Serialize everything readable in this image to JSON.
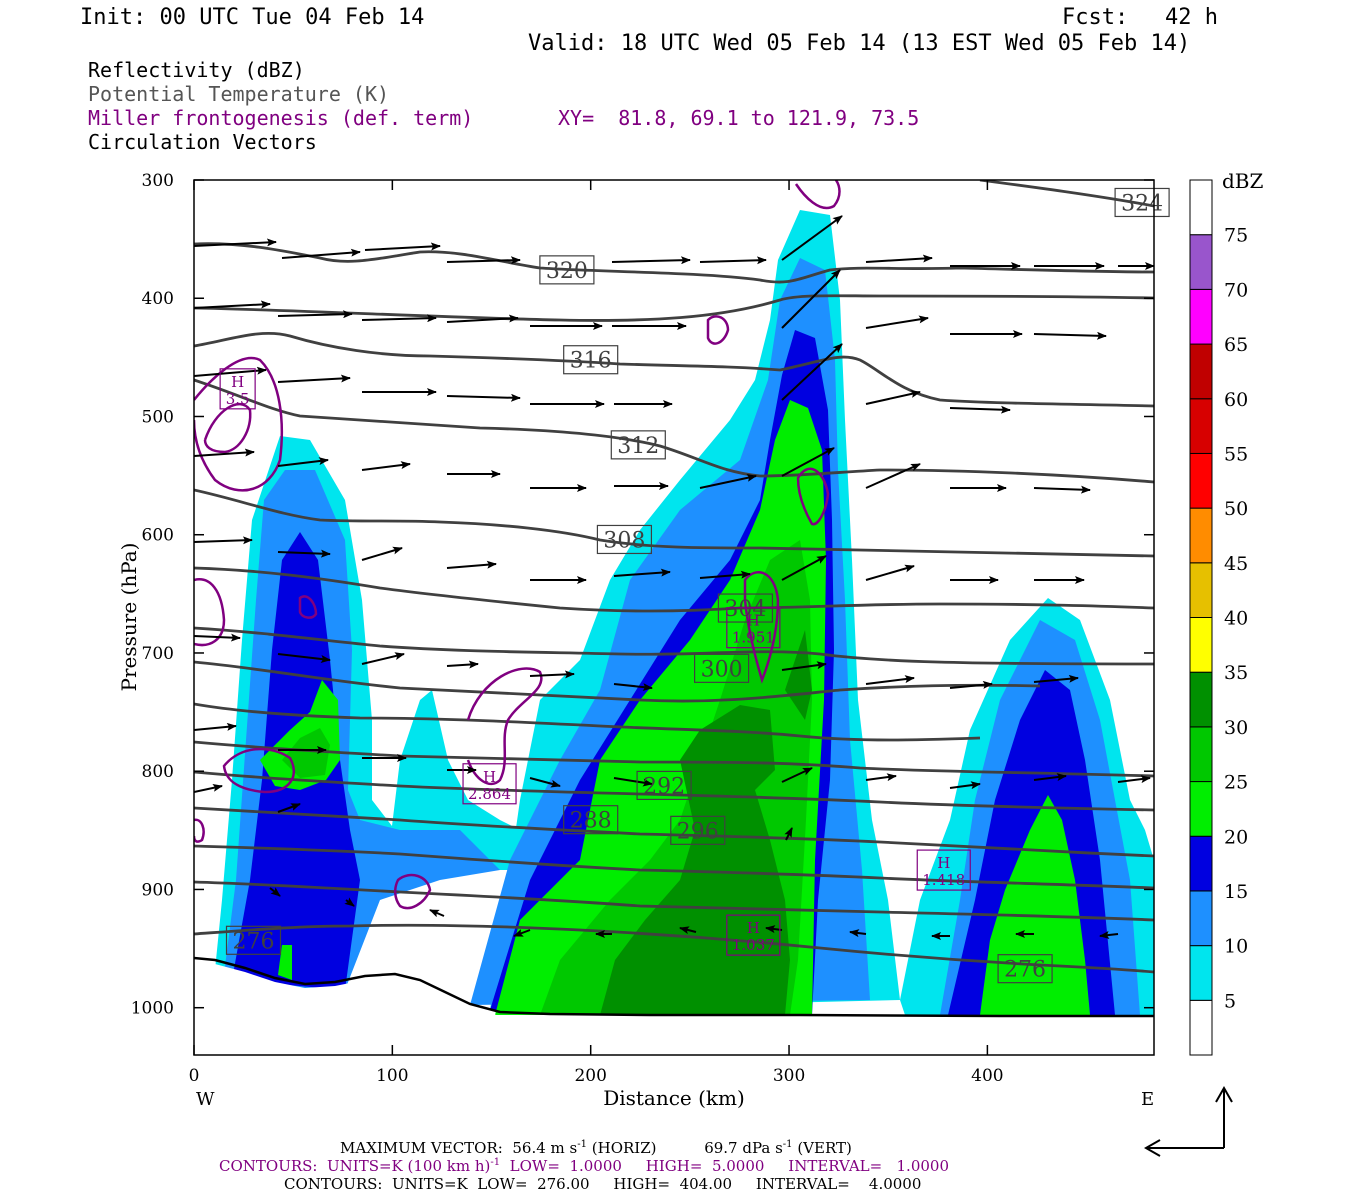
{
  "header": {
    "init": "Init: 00 UTC Tue 04 Feb 14",
    "fcst_label": "Fcst:",
    "fcst_value": "42 h",
    "valid": "Valid: 18 UTC Wed 05 Feb 14 (13 EST Wed 05 Feb 14)"
  },
  "fields": {
    "reflectivity": "Reflectivity (dBZ)",
    "theta": "Potential Temperature (K)",
    "frontogenesis": "Miller frontogenesis (def. term)",
    "xy": "XY=  81.8, 69.1 to 121.9, 73.5",
    "vectors": "Circulation Vectors"
  },
  "colors": {
    "frontogenesis": "#800080",
    "theta_contour": "#404040",
    "terrain": "#000000"
  },
  "footer": {
    "max_vector_label": "MAXIMUM VECTOR:",
    "max_vector_horiz": "56.4 m s",
    "max_vector_horiz_tail": " (HORIZ)",
    "max_vector_vert": "69.7 dPa s",
    "max_vector_vert_tail": " (VERT)",
    "sup": "-1",
    "contours1_a": "CONTOURS:  UNITS=K (100 km h)",
    "contours1_b": "  LOW=  1.0000     HIGH=  5.0000     INTERVAL=   1.0000",
    "contours2": "CONTOURS:  UNITS=K  LOW=  276.00     HIGH=  404.00     INTERVAL=    4.0000"
  },
  "chart_data": {
    "type": "cross-section",
    "xlabel": "Distance (km)",
    "ylabel": "Pressure (hPa)",
    "xlim": [
      0,
      484
    ],
    "ylim": [
      1040,
      300
    ],
    "x_ticks": [
      0,
      100,
      200,
      300,
      400
    ],
    "y_ticks": [
      300,
      400,
      500,
      600,
      700,
      800,
      900,
      1000
    ],
    "x_end_labels": {
      "left": "W",
      "right": "E"
    },
    "colorbar": {
      "unit": "dBZ",
      "levels": [
        5,
        10,
        15,
        20,
        25,
        30,
        35,
        40,
        45,
        50,
        55,
        60,
        65,
        70,
        75
      ],
      "colors": [
        "#00e5ee",
        "#1e90ff",
        "#0000e0",
        "#00ee00",
        "#00c800",
        "#009000",
        "#ffff00",
        "#e6c000",
        "#ff8c00",
        "#ff0000",
        "#d70000",
        "#c00000",
        "#ff00ff",
        "#9955cc",
        "#ffffff"
      ],
      "bottom_color": "#ffffff"
    },
    "theta_labels": [
      {
        "x": 188,
        "p": 376,
        "value": "320"
      },
      {
        "x": 200,
        "p": 452,
        "value": "316"
      },
      {
        "x": 224,
        "p": 524,
        "value": "312"
      },
      {
        "x": 217,
        "p": 604,
        "value": "308"
      },
      {
        "x": 278,
        "p": 662,
        "value": "304"
      },
      {
        "x": 266,
        "p": 713,
        "value": "300"
      },
      {
        "x": 254,
        "p": 850,
        "value": "296"
      },
      {
        "x": 237,
        "p": 812,
        "value": "292"
      },
      {
        "x": 200,
        "p": 841,
        "value": "288"
      },
      {
        "x": 30,
        "p": 943,
        "value": "276"
      },
      {
        "x": 419,
        "p": 967,
        "value": "276"
      },
      {
        "x": 478,
        "p": 319,
        "value": "324"
      }
    ],
    "frontogenesis_maxima": [
      {
        "x": 22,
        "p": 480,
        "value": "3.5"
      },
      {
        "x": 149,
        "p": 814,
        "value": "2.864"
      },
      {
        "x": 282,
        "p": 682,
        "value": "1.951"
      },
      {
        "x": 378,
        "p": 887,
        "value": "1.418"
      },
      {
        "x": 282,
        "p": 942,
        "value": "1.037"
      }
    ],
    "max_vector_horiz": 56.4,
    "max_vector_vert": 69.7
  }
}
